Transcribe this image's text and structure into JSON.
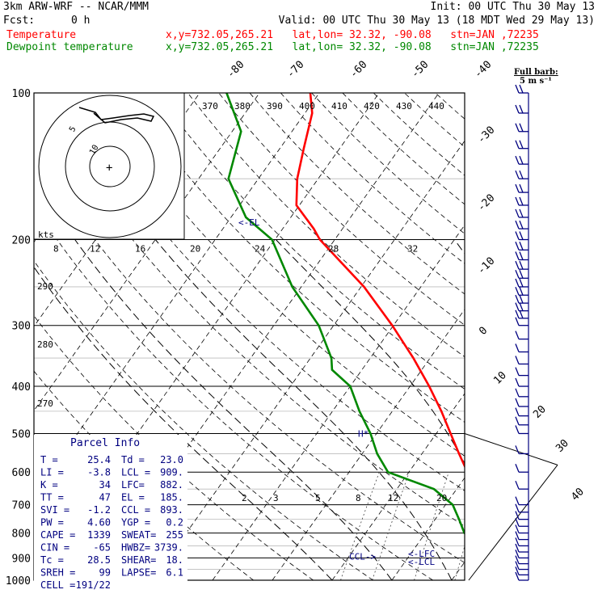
{
  "header": {
    "model": "3km ARW-WRF -- NCAR/MMM",
    "init": "Init: 00 UTC Thu 30 May 13",
    "fcst_label": "Fcst:",
    "fcst_value": "0 h",
    "valid": "Valid: 00 UTC Thu 30 May 13 (18 MDT Wed 29 May 13)",
    "lines": [
      {
        "name": "Temperature",
        "info": "x,y=732.05,265.21   lat,lon= 32.32, -90.08   stn=JAN ,72235",
        "color": "#ff0000"
      },
      {
        "name": "Dewpoint temperature",
        "info": "x,y=732.05,265.21   lat,lon= 32.32, -90.08   stn=JAN ,72235",
        "color": "#008800"
      }
    ]
  },
  "barb_legend": {
    "line1": "Full barb:",
    "line2": "5 m s⁻¹"
  },
  "chart_data": {
    "type": "line",
    "ylabel_units": "hPa",
    "pressure_ticks": [
      100,
      200,
      300,
      400,
      500,
      600,
      700,
      800,
      900,
      1000
    ],
    "skewed_temp_labels": [
      -80,
      -70,
      -60,
      -50,
      -40,
      -30,
      -20,
      -10,
      0,
      10,
      20,
      30,
      40
    ],
    "theta_labels": [
      370,
      380,
      390,
      400,
      410,
      420,
      430,
      440
    ],
    "dry_adiabat_labels": [
      290,
      280,
      270
    ],
    "mixing_ratio_labels": [
      "2",
      "3",
      "5",
      "8",
      "12",
      "20"
    ],
    "series": [
      {
        "name": "Temperature",
        "color": "#ff0000",
        "points": [
          [
            1000,
            25.4
          ],
          [
            980,
            23.8
          ],
          [
            950,
            21.0
          ],
          [
            920,
            19.0
          ],
          [
            900,
            18.0
          ],
          [
            870,
            16.0
          ],
          [
            850,
            15.2
          ],
          [
            800,
            12.5
          ],
          [
            750,
            9.5
          ],
          [
            700,
            7.0
          ],
          [
            650,
            3.6
          ],
          [
            600,
            -0.2
          ],
          [
            550,
            -3.8
          ],
          [
            500,
            -7.6
          ],
          [
            450,
            -11.8
          ],
          [
            400,
            -16.8
          ],
          [
            350,
            -22.8
          ],
          [
            300,
            -30.2
          ],
          [
            250,
            -39.5
          ],
          [
            200,
            -52.5
          ],
          [
            190,
            -54.8
          ],
          [
            170,
            -60.5
          ],
          [
            150,
            -63.5
          ],
          [
            130,
            -66.0
          ],
          [
            110,
            -68.8
          ],
          [
            100,
            -71.5
          ]
        ]
      },
      {
        "name": "Dewpoint temperature",
        "color": "#008800",
        "points": [
          [
            1000,
            23.0
          ],
          [
            980,
            21.0
          ],
          [
            950,
            19.3
          ],
          [
            900,
            17.0
          ],
          [
            850,
            11.5
          ],
          [
            800,
            6.5
          ],
          [
            750,
            4.0
          ],
          [
            700,
            1.2
          ],
          [
            650,
            -3.8
          ],
          [
            600,
            -13.5
          ],
          [
            550,
            -17.5
          ],
          [
            500,
            -21.0
          ],
          [
            450,
            -25.5
          ],
          [
            400,
            -30.0
          ],
          [
            370,
            -35.0
          ],
          [
            350,
            -36.5
          ],
          [
            300,
            -42.5
          ],
          [
            250,
            -51.5
          ],
          [
            200,
            -60.5
          ],
          [
            180,
            -67.5
          ],
          [
            150,
            -75.0
          ],
          [
            120,
            -78.5
          ],
          [
            100,
            -85.5
          ]
        ]
      }
    ],
    "level_markers": [
      {
        "label": "<-EL",
        "p": 185
      },
      {
        "label": "<-LFC",
        "p": 882
      },
      {
        "label": "<-LCL",
        "p": 909
      },
      {
        "label": "CCL->",
        "p": 893
      },
      {
        "label": "H*",
        "p": 500
      }
    ],
    "hodograph": {
      "rings": [
        "5",
        "10",
        "15",
        "20"
      ],
      "center_label": "+",
      "axis_label": "kts",
      "speed_ticks": [
        "8",
        "12",
        "16",
        "20",
        "24",
        "28",
        "32"
      ]
    },
    "wind_levels_hpa": [
      100,
      110,
      120,
      130,
      140,
      150,
      160,
      170,
      180,
      190,
      200,
      210,
      220,
      230,
      240,
      250,
      260,
      270,
      280,
      290,
      300,
      320,
      340,
      360,
      380,
      400,
      420,
      440,
      460,
      480,
      500,
      550,
      600,
      650,
      700,
      725,
      750,
      775,
      800,
      825,
      850,
      875,
      900,
      925,
      950,
      975,
      1000
    ]
  },
  "parcel_info": {
    "title": "Parcel Info",
    "rows": [
      [
        "T  =",
        "25.4",
        "Td =",
        "23.0"
      ],
      [
        "LI =",
        "-3.8",
        "LCL =",
        "909."
      ],
      [
        "K  =",
        "34",
        "LFC=",
        "882."
      ],
      [
        "TT =",
        "47",
        "EL  =",
        "185."
      ],
      [
        "SVI =",
        "-1.2",
        "CCL =",
        "893."
      ],
      [
        "PW =",
        "4.60",
        "YGP =",
        "0.2"
      ],
      [
        "CAPE =",
        "1339",
        "SWEAT=",
        "255"
      ],
      [
        "CIN =",
        "-65",
        "HWBZ=",
        "3739."
      ],
      [
        "Tc =",
        "28.5",
        "SHEAR=",
        "18."
      ],
      [
        "SREH =",
        "99",
        "LAPSE=",
        "6.1"
      ],
      [
        "CELL =",
        "191/22",
        "",
        ""
      ]
    ]
  }
}
